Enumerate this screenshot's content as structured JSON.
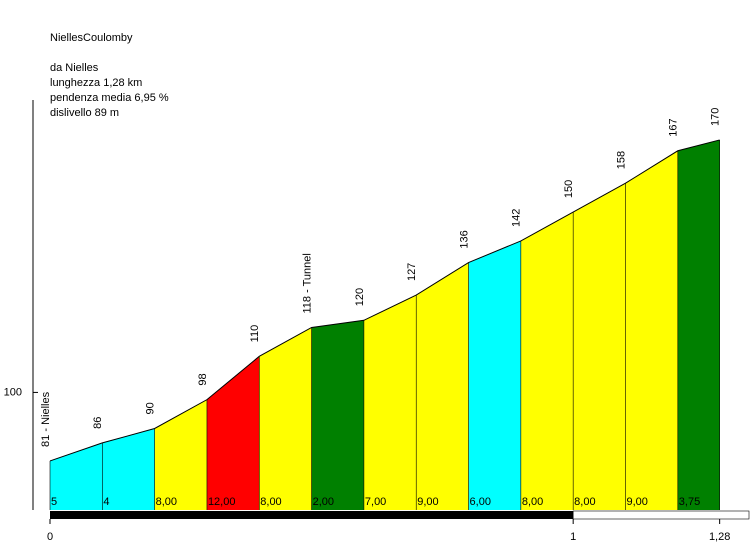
{
  "chart_data": {
    "type": "profile",
    "title": "NiellesCoulomby",
    "info": [
      "da Nielles",
      "lunghezza 1,28 km",
      "pendenza media 6,95 %",
      "dislivello 89 m"
    ],
    "x": [
      0,
      0.1,
      0.2,
      0.3,
      0.4,
      0.5,
      0.6,
      0.7,
      0.8,
      0.9,
      1.0,
      1.1,
      1.2,
      1.28
    ],
    "values": [
      81,
      86,
      90,
      98,
      110,
      118,
      120,
      127,
      136,
      142,
      150,
      158,
      167,
      170
    ],
    "value_labels": [
      "81 - Nielles",
      "86",
      "90",
      "98",
      "110",
      "118 - Tunnel",
      "120",
      "127",
      "136",
      "142",
      "150",
      "158",
      "167",
      "170"
    ],
    "segment_labels": [
      "5",
      "4",
      "8,00",
      "12,00",
      "8,00",
      "2,00",
      "7,00",
      "9,00",
      "6,00",
      "8,00",
      "8,00",
      "9,00",
      "3,75"
    ],
    "segment_colors": [
      "#00ffff",
      "#00ffff",
      "#ffff00",
      "#ff0000",
      "#ffff00",
      "#008000",
      "#ffff00",
      "#ffff00",
      "#00ffff",
      "#ffff00",
      "#ffff00",
      "#ffff00",
      "#008000"
    ],
    "xlim": [
      0,
      1.338
    ],
    "ylim": [
      67.4,
      208.8
    ],
    "xticks": [
      0,
      1,
      {
        "value": 1.28,
        "label": "1,28"
      }
    ],
    "yticks": [
      100
    ]
  }
}
